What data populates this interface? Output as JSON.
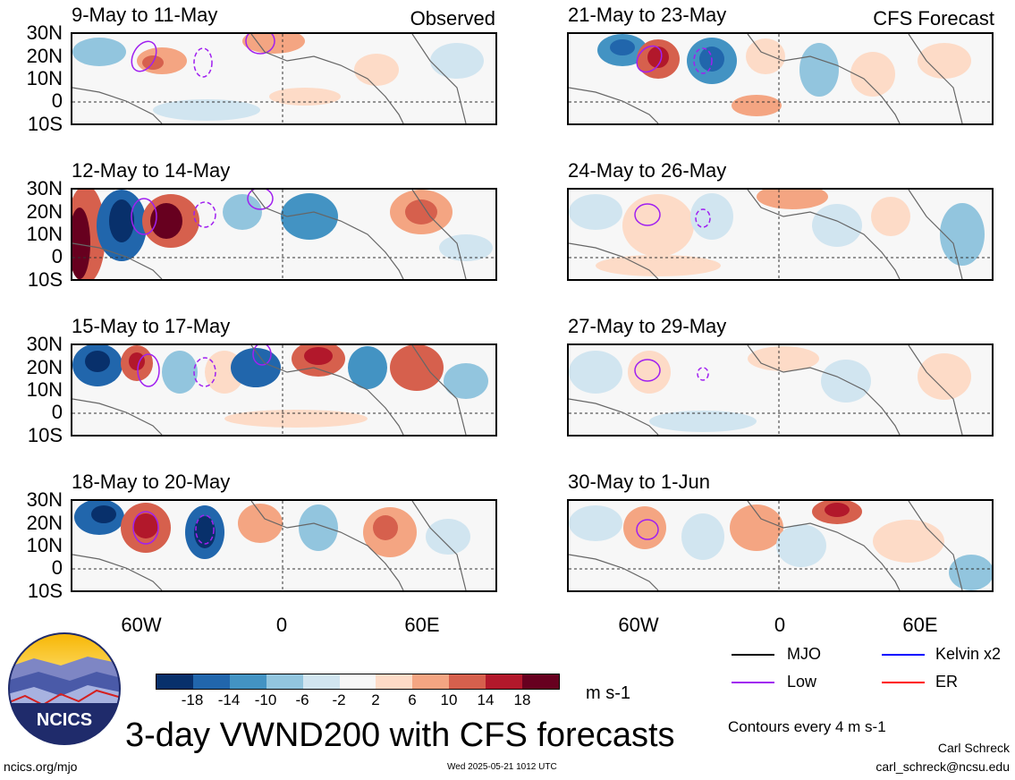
{
  "panels_left": [
    {
      "title": "9-May to 11-May",
      "tag": "Observed"
    },
    {
      "title": "12-May to 14-May",
      "tag": ""
    },
    {
      "title": "15-May to 17-May",
      "tag": ""
    },
    {
      "title": "18-May to 20-May",
      "tag": ""
    }
  ],
  "panels_right": [
    {
      "title": "21-May to 23-May",
      "tag": "CFS Forecast"
    },
    {
      "title": "24-May to 26-May",
      "tag": ""
    },
    {
      "title": "27-May to 29-May",
      "tag": ""
    },
    {
      "title": "30-May to 1-Jun",
      "tag": ""
    }
  ],
  "lat_labels": [
    "30N",
    "20N",
    "10N",
    "0",
    "10S"
  ],
  "lon_labels": [
    "60W",
    "0",
    "60E"
  ],
  "legend": {
    "mjo": "MJO",
    "kelvin": "Kelvin x2",
    "low": "Low",
    "er": "ER",
    "colors": {
      "mjo": "#000000",
      "kelvin": "#0000ff",
      "low": "#a020f0",
      "er": "#ff0000"
    }
  },
  "colorbar": {
    "ticks": [
      "-18",
      "-14",
      "-10",
      "-6",
      "-2",
      "2",
      "6",
      "10",
      "14",
      "18"
    ],
    "units": "m s-1",
    "colors": [
      "#08306b",
      "#2166ac",
      "#4393c3",
      "#92c5de",
      "#d1e5f0",
      "#f7f7f7",
      "#fddbc7",
      "#f4a582",
      "#d6604d",
      "#b2182b",
      "#67001f"
    ]
  },
  "main_title": "3-day VWND200 with CFS forecasts",
  "contours_note": "Contours every 4 m s-1",
  "author": "Carl Schreck",
  "email": "carl_schreck@ncsu.edu",
  "url": "ncics.org/mjo",
  "timestamp": "Wed 2025-05-21 1012 UTC",
  "logo_text": "NCICS"
}
